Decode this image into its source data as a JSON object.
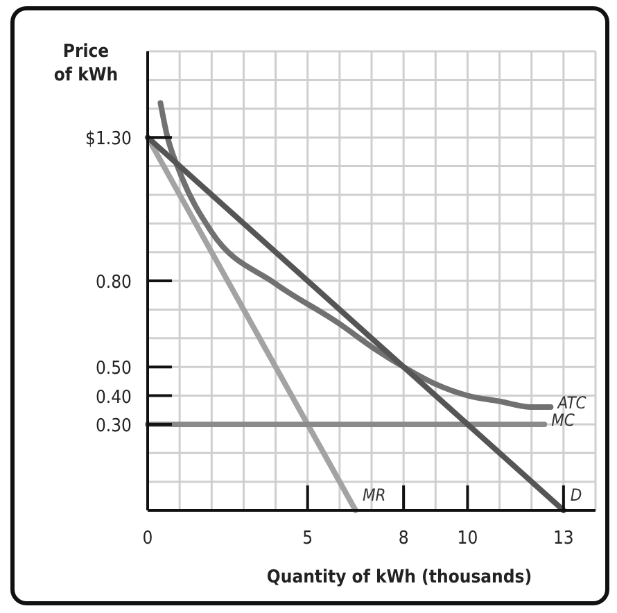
{
  "chart_data": {
    "type": "line",
    "ylabel": "Price\nof kWh",
    "xlabel": "Quantity of kWh (thousands)",
    "xlim": [
      0,
      14
    ],
    "ylim": [
      0,
      1.6
    ],
    "xticks": [
      0,
      {
        "value": 1,
        "label": null
      },
      {
        "value": 2,
        "label": null
      },
      {
        "value": 3,
        "label": null
      },
      {
        "value": 4,
        "label": null
      },
      5,
      {
        "value": 6,
        "label": null
      },
      {
        "value": 7,
        "label": null
      },
      8,
      {
        "value": 9,
        "label": null
      },
      10,
      {
        "value": 11,
        "label": null
      },
      {
        "value": 12,
        "label": null
      },
      13,
      {
        "value": 14,
        "label": null
      }
    ],
    "yticks": [
      {
        "value": 0.1,
        "label": null
      },
      {
        "value": 0.2,
        "label": null
      },
      {
        "value": 0.3,
        "label": "0.30"
      },
      {
        "value": 0.4,
        "label": "0.40"
      },
      {
        "value": 0.5,
        "label": "0.50"
      },
      {
        "value": 0.6,
        "label": null
      },
      {
        "value": 0.7,
        "label": null
      },
      {
        "value": 0.8,
        "label": "0.80"
      },
      {
        "value": 0.9,
        "label": null
      },
      {
        "value": 1.0,
        "label": null
      },
      {
        "value": 1.1,
        "label": null
      },
      {
        "value": 1.2,
        "label": null
      },
      {
        "value": 1.3,
        "label": "$1.30"
      },
      {
        "value": 1.4,
        "label": null
      },
      {
        "value": 1.5,
        "label": null
      },
      {
        "value": 1.6,
        "label": null
      }
    ],
    "grid": true,
    "marker": "none",
    "line_style": "solid",
    "series": [
      {
        "name": "MR",
        "color": "#a3a3a3",
        "x": [
          0,
          5,
          6.5
        ],
        "values": [
          1.3,
          0.3,
          0
        ]
      },
      {
        "name": "MC",
        "color": "#8a8a8a",
        "x": [
          0,
          12.4
        ],
        "values": [
          0.3,
          0.3
        ]
      },
      {
        "name": "ATC",
        "color": "#717171",
        "x": [
          0.4,
          0.6,
          1,
          2,
          4,
          6,
          7,
          8,
          9,
          10,
          11,
          12,
          12.6
        ],
        "values": [
          1.42,
          1.31,
          1.18,
          0.97,
          0.79,
          0.65,
          0.57,
          0.5,
          0.44,
          0.4,
          0.38,
          0.36,
          0.36
        ]
      },
      {
        "name": "D",
        "color": "#555555",
        "x": [
          0,
          13
        ],
        "values": [
          1.3,
          0
        ]
      }
    ]
  }
}
